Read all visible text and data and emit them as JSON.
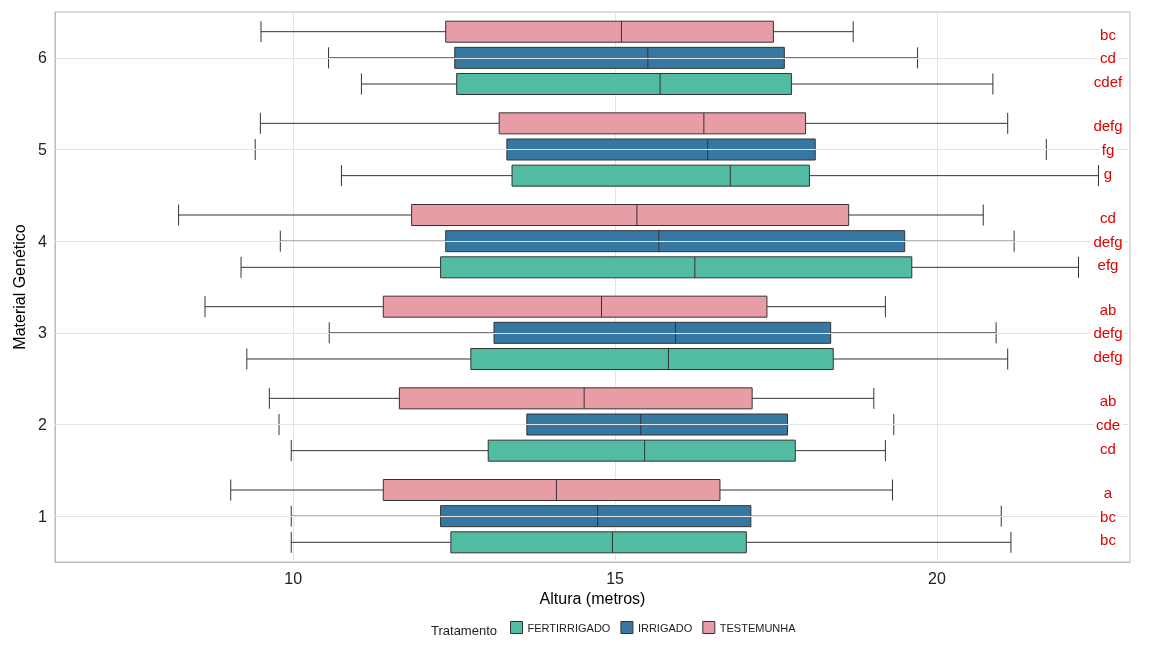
{
  "chart_data": {
    "type": "box",
    "orientation": "horizontal",
    "xlabel": "Altura (metros)",
    "ylabel": "Material Genético",
    "legend_title": "Tratamento",
    "legend": "bottom",
    "grid": true,
    "categories": [
      "6",
      "5",
      "4",
      "3",
      "2",
      "1"
    ],
    "xlim": [
      6.3,
      23.0
    ],
    "xticks": [
      10,
      15,
      20
    ],
    "series": [
      {
        "name": "FERTIRRIGADO",
        "color": "#52bca3",
        "value_labels": [
          "cdef",
          "g",
          "efg",
          "defg",
          "cd",
          "bc"
        ],
        "boxes": [
          {
            "low": 11.06,
            "q1": 12.54,
            "median": 15.7,
            "q3": 17.74,
            "high": 20.87
          },
          {
            "low": 10.75,
            "q1": 13.4,
            "median": 16.79,
            "q3": 18.02,
            "high": 22.51
          },
          {
            "low": 9.19,
            "q1": 12.29,
            "median": 16.24,
            "q3": 19.61,
            "high": 22.2
          },
          {
            "low": 9.28,
            "q1": 12.76,
            "median": 15.83,
            "q3": 18.39,
            "high": 21.1
          },
          {
            "low": 9.97,
            "q1": 13.03,
            "median": 15.46,
            "q3": 17.8,
            "high": 19.2
          },
          {
            "low": 9.97,
            "q1": 12.45,
            "median": 14.96,
            "q3": 17.04,
            "high": 21.15
          }
        ]
      },
      {
        "name": "IRRIGADO",
        "color": "#3778a2",
        "value_labels": [
          "cd",
          "fg",
          "defg",
          "defg",
          "cde",
          "bc"
        ],
        "boxes": [
          {
            "low": 10.55,
            "q1": 12.51,
            "median": 15.51,
            "q3": 17.63,
            "high": 19.7
          },
          {
            "low": 9.41,
            "q1": 13.32,
            "median": 16.44,
            "q3": 18.11,
            "high": 21.7
          },
          {
            "low": 9.8,
            "q1": 12.37,
            "median": 15.68,
            "q3": 19.5,
            "high": 21.2
          },
          {
            "low": 10.56,
            "q1": 13.12,
            "median": 15.94,
            "q3": 18.35,
            "high": 20.92
          },
          {
            "low": 9.78,
            "q1": 13.63,
            "median": 15.4,
            "q3": 17.68,
            "high": 19.33
          },
          {
            "low": 9.97,
            "q1": 12.29,
            "median": 14.73,
            "q3": 17.11,
            "high": 21.0
          }
        ]
      },
      {
        "name": "TESTEMUNHA",
        "color": "#e89ca6",
        "value_labels": [
          "bc",
          "defg",
          "cd",
          "ab",
          "ab",
          "a"
        ],
        "boxes": [
          {
            "low": 9.5,
            "q1": 12.37,
            "median": 15.1,
            "q3": 17.46,
            "high": 18.7
          },
          {
            "low": 9.49,
            "q1": 13.2,
            "median": 16.38,
            "q3": 17.96,
            "high": 21.1
          },
          {
            "low": 8.22,
            "q1": 11.84,
            "median": 15.34,
            "q3": 18.63,
            "high": 20.72
          },
          {
            "low": 8.63,
            "q1": 11.4,
            "median": 14.79,
            "q3": 17.36,
            "high": 19.2
          },
          {
            "low": 9.63,
            "q1": 11.65,
            "median": 14.52,
            "q3": 17.13,
            "high": 19.02
          },
          {
            "low": 9.03,
            "q1": 11.4,
            "median": 14.09,
            "q3": 16.63,
            "high": 19.31
          }
        ]
      }
    ]
  }
}
